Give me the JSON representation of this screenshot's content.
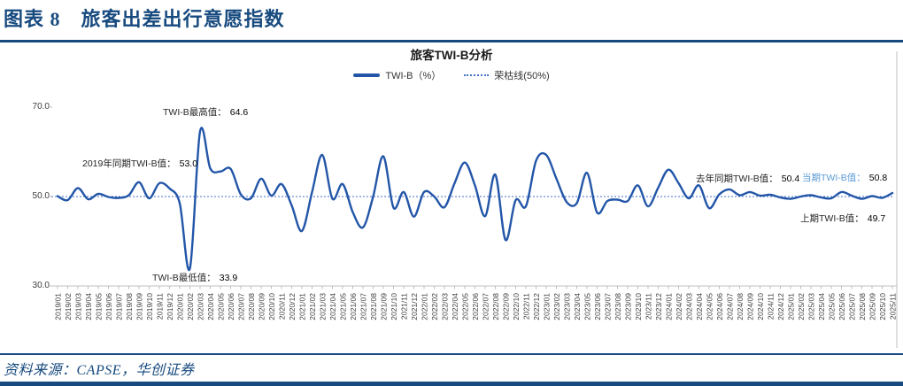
{
  "header": {
    "title": "图表 8　旅客出差出行意愿指数"
  },
  "footer": {
    "source": "资料来源：CAPSE，华创证券"
  },
  "colors": {
    "brand": "#174A7F",
    "line": "#2356A8",
    "baseline": "#4472C4",
    "highlight": "#5B9BD5",
    "axis": "#BFBFBF",
    "tick_text": "#404040"
  },
  "chart_data": {
    "type": "line",
    "title": "旅客TWI-B分析",
    "legend": [
      {
        "label": "TWI-B（%）",
        "style": "solid"
      },
      {
        "label": "荣枯线(50%)",
        "style": "dotted"
      }
    ],
    "ylim": [
      30,
      70
    ],
    "yticks": [
      70,
      50,
      30
    ],
    "ytick_labels": [
      "70.0",
      "50.0",
      "30.0"
    ],
    "baseline": 50,
    "grid": "off",
    "legend_position": "top",
    "x": [
      "2019/01",
      "2019/02",
      "2019/03",
      "2019/04",
      "2019/05",
      "2019/06",
      "2019/07",
      "2019/08",
      "2019/09",
      "2019/10",
      "2019/11",
      "2019/12",
      "2020/01",
      "2020/02",
      "2020/03",
      "2020/04",
      "2020/05",
      "2020/06",
      "2020/07",
      "2020/08",
      "2020/09",
      "2020/10",
      "2020/11",
      "2020/12",
      "2021/01",
      "2021/02",
      "2021/03",
      "2021/04",
      "2021/05",
      "2021/06",
      "2021/07",
      "2021/08",
      "2021/09",
      "2021/10",
      "2021/11",
      "2021/12",
      "2022/01",
      "2022/02",
      "2022/03",
      "2022/04",
      "2022/05",
      "2022/06",
      "2022/07",
      "2022/08",
      "2022/09",
      "2022/10",
      "2022/11",
      "2022/12",
      "2023/01",
      "2023/02",
      "2023/03",
      "2023/04",
      "2023/05",
      "2023/06",
      "2023/07",
      "2023/08",
      "2023/09",
      "2023/10",
      "2023/11",
      "2023/12",
      "2024/01",
      "2024/02",
      "2024/03",
      "2024/04",
      "2024/05",
      "2024/06",
      "2024/07",
      "2024/08",
      "2024/09",
      "2024/10",
      "2024/11",
      "2024/12",
      "2025/01",
      "2025/02",
      "2025/03",
      "2025/04",
      "2025/05",
      "2025/06",
      "2025/07",
      "2025/08",
      "2025/09",
      "2025/10",
      "2025/11"
    ],
    "values": [
      50.1,
      49.2,
      51.9,
      49.4,
      50.6,
      49.9,
      49.7,
      50.3,
      53.2,
      49.6,
      53.0,
      51.8,
      48.5,
      33.9,
      64.6,
      56.3,
      55.6,
      56.2,
      50.5,
      49.6,
      54.0,
      50.2,
      52.8,
      48.0,
      42.3,
      51.0,
      59.3,
      49.5,
      52.8,
      46.5,
      43.1,
      50.0,
      59.0,
      47.5,
      51.0,
      45.5,
      51.0,
      50.0,
      47.6,
      53.0,
      57.6,
      52.5,
      45.6,
      54.9,
      40.3,
      49.2,
      47.8,
      58.0,
      59.3,
      54.0,
      48.8,
      48.5,
      55.3,
      46.4,
      49.0,
      49.3,
      49.0,
      52.5,
      47.8,
      52.0,
      56.0,
      53.0,
      49.6,
      52.5,
      47.4,
      50.5,
      51.6,
      50.3,
      51.0,
      50.2,
      50.4,
      49.8,
      49.5,
      50.0,
      50.3,
      49.8,
      49.6,
      51.0,
      50.2,
      49.5,
      50.1,
      49.7,
      50.8
    ],
    "annotations": [
      {
        "label": "TWI-B最高值：",
        "value": "64.6"
      },
      {
        "label": "2019年同期TWI-B值：",
        "value": "53.0"
      },
      {
        "label": "TWI-B最低值：",
        "value": "33.9"
      },
      {
        "label": "去年同期TWI-B值：",
        "value": "50.4"
      },
      {
        "label": "当期TWI-B值：",
        "value": "50.8"
      },
      {
        "label": "上期TWI-B值：",
        "value": "49.7"
      }
    ]
  }
}
